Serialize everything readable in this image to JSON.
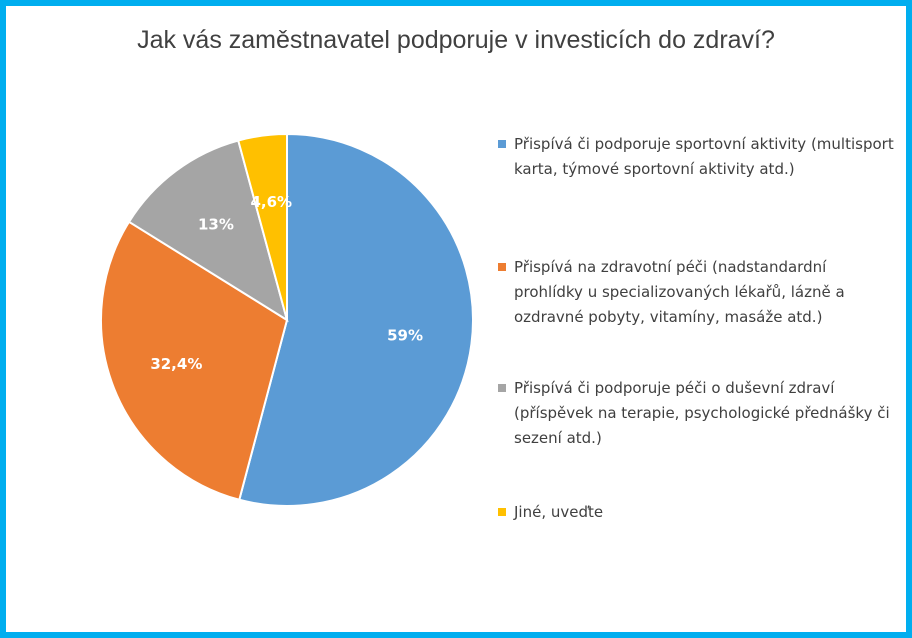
{
  "chart_data": {
    "type": "pie",
    "title": "Jak vás zaměstnavatel podporuje v investicích do zdraví?",
    "categories": [
      "Přispívá či podporuje sportovní aktivity (multisport karta, týmové sportovní aktivity atd.)",
      "Přispívá na zdravotní péči (nadstandardní prohlídky u specializovaných lékařů, lázně a ozdravné pobyty, vitamíny, masáže atd.)",
      "Přispívá či podporuje péči o duševní zdraví (příspěvek na terapie, psychologické přednášky či sezení atd.)",
      "Jiné, uveďte"
    ],
    "values": [
      59,
      32.4,
      13,
      4.6
    ],
    "labels": [
      "59%",
      "32,4%",
      "13%",
      "4,6%"
    ],
    "colors": [
      "#5b9bd5",
      "#ed7d31",
      "#a5a5a5",
      "#ffc000"
    ],
    "legend_position": "right"
  }
}
